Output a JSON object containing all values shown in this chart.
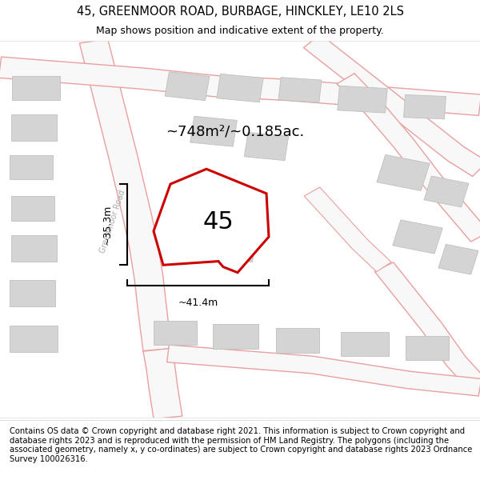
{
  "title": "45, GREENMOOR ROAD, BURBAGE, HINCKLEY, LE10 2LS",
  "subtitle": "Map shows position and indicative extent of the property.",
  "footer": "Contains OS data © Crown copyright and database right 2021. This information is subject to Crown copyright and database rights 2023 and is reproduced with the permission of HM Land Registry. The polygons (including the associated geometry, namely x, y co-ordinates) are subject to Crown copyright and database rights 2023 Ordnance Survey 100026316.",
  "area_label": "~748m²/~0.185ac.",
  "property_number": "45",
  "dim_width": "~41.4m",
  "dim_height": "~35.3m",
  "road_label": "Greenmoor Road",
  "map_bg": "#ececec",
  "property_fill": "#ffffff",
  "property_edge": "#cc0000",
  "building_fill": "#d4d4d4",
  "building_edge": "#c4c4c4",
  "road_fill": "#f8f8f8",
  "road_edge": "#e8a0a0",
  "title_fontsize": 10.5,
  "subtitle_fontsize": 9,
  "footer_fontsize": 7.2,
  "area_fontsize": 13,
  "number_fontsize": 22,
  "dim_fontsize": 9,
  "road_label_fontsize": 7
}
